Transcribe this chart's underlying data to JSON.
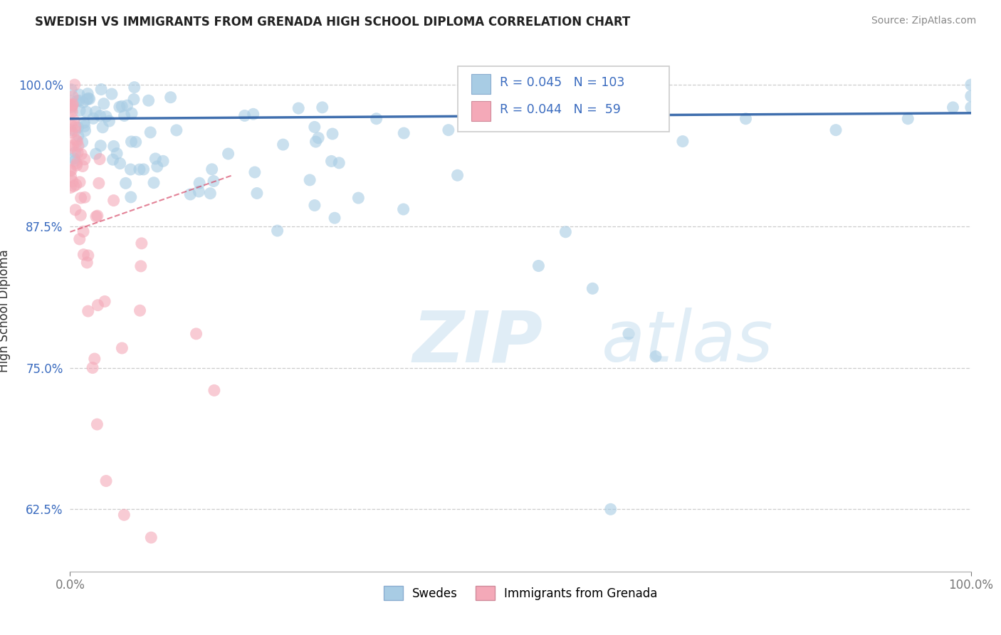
{
  "title": "SWEDISH VS IMMIGRANTS FROM GRENADA HIGH SCHOOL DIPLOMA CORRELATION CHART",
  "source": "Source: ZipAtlas.com",
  "ylabel": "High School Diploma",
  "r_swedes": 0.045,
  "n_swedes": 103,
  "r_grenada": 0.044,
  "n_grenada": 59,
  "legend_label_swedes": "Swedes",
  "legend_label_grenada": "Immigrants from Grenada",
  "color_swedes": "#a8cce4",
  "color_grenada": "#f4a9b8",
  "trendline_color_swedes": "#2b5fa5",
  "trendline_color_grenada": "#d44060",
  "xlim": [
    0.0,
    1.0
  ],
  "ylim": [
    0.57,
    1.03
  ],
  "yticks": [
    0.625,
    0.75,
    0.875,
    1.0
  ],
  "ytick_labels": [
    "62.5%",
    "75.0%",
    "87.5%",
    "100.0%"
  ],
  "xticks": [
    0.0,
    1.0
  ],
  "xtick_labels": [
    "0.0%",
    "100.0%"
  ],
  "watermark_zip": "ZIP",
  "watermark_atlas": "atlas",
  "sw_trendline": [
    0.0,
    1.0,
    0.97,
    0.975
  ],
  "gr_trendline": [
    0.0,
    0.18,
    0.87,
    0.92
  ]
}
